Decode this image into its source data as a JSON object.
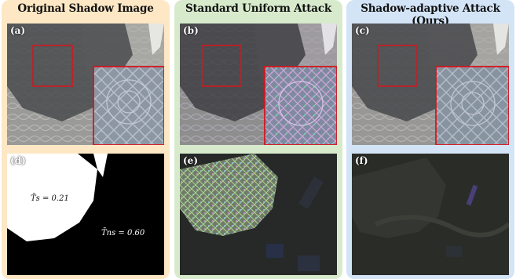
{
  "columns": [
    {
      "title": "Original Shadow Image"
    },
    {
      "title": "Standard Uniform Attack"
    },
    {
      "title": "Shadow-adaptive Attack (Ours)"
    }
  ],
  "panels": {
    "a": "(a)",
    "b": "(b)",
    "c": "(c)",
    "d": "(d)",
    "e": "(e)",
    "f": "(f)"
  },
  "mask_labels": {
    "shadow": "T̄s = 0.21",
    "nonshadow": "T̄ns = 0.60"
  },
  "colors": {
    "orange_bg": "#fde7c4",
    "green_bg": "#d7ebcc",
    "blue_bg": "#d3e4f7",
    "zoom_box": "#d8141c"
  }
}
